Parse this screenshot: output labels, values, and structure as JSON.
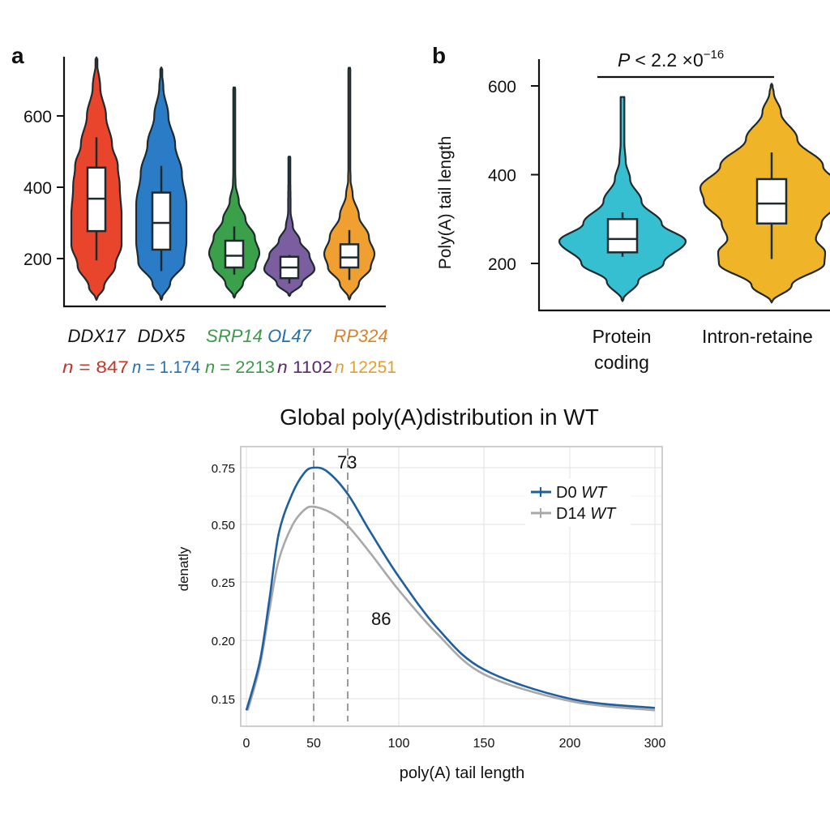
{
  "chart_data": [
    {
      "type": "violin",
      "panel_label": "a",
      "ylim": [
        66,
        780
      ],
      "yticks": [
        200,
        400,
        600
      ],
      "categories": [
        "DDX17",
        "DDX5",
        "SRP14",
        "OL47",
        "RP324"
      ],
      "category_colors": [
        "#111111",
        "#111111",
        "#3a9a48",
        "#1f6fb0",
        "#d9822b"
      ],
      "n_labels": [
        "n = 847",
        "n = 1.174",
        "n = 2213",
        "n 1102",
        "n 12251"
      ],
      "n_label_colors": [
        "#c0392b",
        "#1f6fb0",
        "#3a9a48",
        "#5a2a6a",
        "#e0a030"
      ],
      "series": [
        {
          "fill": "#e8452c",
          "box": {
            "whisker_low": 195,
            "q1": 277,
            "median": 368,
            "q3": 455,
            "whisker_high": 540
          },
          "density": [
            [
              84,
              0
            ],
            [
              120,
              0.3
            ],
            [
              180,
              0.75
            ],
            [
              240,
              1
            ],
            [
              320,
              1
            ],
            [
              400,
              0.93
            ],
            [
              460,
              0.85
            ],
            [
              520,
              0.62
            ],
            [
              600,
              0.38
            ],
            [
              680,
              0.15
            ],
            [
              764,
              0
            ]
          ]
        },
        {
          "fill": "#2a7cc7",
          "box": {
            "whisker_low": 165,
            "q1": 225,
            "median": 300,
            "q3": 385,
            "whisker_high": 460
          },
          "density": [
            [
              84,
              0
            ],
            [
              130,
              0.35
            ],
            [
              190,
              0.92
            ],
            [
              250,
              1
            ],
            [
              350,
              1
            ],
            [
              440,
              0.82
            ],
            [
              520,
              0.55
            ],
            [
              600,
              0.28
            ],
            [
              680,
              0.08
            ],
            [
              736,
              0
            ]
          ]
        },
        {
          "fill": "#3aa04a",
          "box": {
            "whisker_low": 155,
            "q1": 175,
            "median": 208,
            "q3": 250,
            "whisker_high": 290
          },
          "density": [
            [
              90,
              0
            ],
            [
              130,
              0.35
            ],
            [
              180,
              0.85
            ],
            [
              215,
              1
            ],
            [
              260,
              0.82
            ],
            [
              310,
              0.45
            ],
            [
              360,
              0.18
            ],
            [
              410,
              0.05
            ],
            [
              460,
              0.03
            ],
            [
              680,
              0.03
            ]
          ]
        },
        {
          "fill": "#7a5ea0",
          "box": {
            "whisker_low": 130,
            "q1": 145,
            "median": 175,
            "q3": 205,
            "whisker_high": 210
          },
          "density": [
            [
              95,
              0
            ],
            [
              130,
              0.5
            ],
            [
              170,
              1
            ],
            [
              210,
              0.8
            ],
            [
              250,
              0.42
            ],
            [
              290,
              0.14
            ],
            [
              330,
              0.05
            ],
            [
              486,
              0.03
            ]
          ]
        },
        {
          "fill": "#f0a030",
          "box": {
            "whisker_low": 140,
            "q1": 175,
            "median": 203,
            "q3": 240,
            "whisker_high": 280
          },
          "density": [
            [
              85,
              0
            ],
            [
              130,
              0.38
            ],
            [
              175,
              0.85
            ],
            [
              213,
              1
            ],
            [
              260,
              0.78
            ],
            [
              320,
              0.38
            ],
            [
              380,
              0.13
            ],
            [
              420,
              0.05
            ],
            [
              470,
              0.03
            ],
            [
              735,
              0.03
            ]
          ]
        }
      ]
    },
    {
      "type": "violin",
      "panel_label": "b",
      "ylabel": "Poly(A) tail length",
      "ylim": [
        95,
        690
      ],
      "yticks": [
        200,
        400,
        600
      ],
      "categories": [
        "Protein coding",
        "Intron-retained"
      ],
      "category_lines": [
        [
          "Protein",
          "coding"
        ],
        [
          "Intron-retaine"
        ]
      ],
      "significance": {
        "p_symbol": "P",
        "text": "< 2.2 ×0",
        "exponent": "−16"
      },
      "series": [
        {
          "fill": "#35bfd0",
          "box": {
            "whisker_low": 215,
            "q1": 225,
            "median": 255,
            "q3": 300,
            "whisker_high": 315
          },
          "density": [
            [
              115,
              0
            ],
            [
              160,
              0.25
            ],
            [
              200,
              0.65
            ],
            [
              250,
              1
            ],
            [
              290,
              0.62
            ],
            [
              340,
              0.3
            ],
            [
              390,
              0.12
            ],
            [
              430,
              0.05
            ],
            [
              470,
              0.03
            ],
            [
              575,
              0.03
            ]
          ]
        },
        {
          "fill": "#f0b428",
          "box": {
            "whisker_low": 210,
            "q1": 290,
            "median": 335,
            "q3": 390,
            "whisker_high": 450
          },
          "density": [
            [
              112,
              0
            ],
            [
              150,
              0.28
            ],
            [
              200,
              0.74
            ],
            [
              225,
              0.75
            ],
            [
              255,
              0.62
            ],
            [
              290,
              0.7
            ],
            [
              340,
              0.95
            ],
            [
              370,
              1
            ],
            [
              420,
              0.72
            ],
            [
              480,
              0.36
            ],
            [
              540,
              0.13
            ],
            [
              585,
              0.03
            ],
            [
              605,
              0
            ]
          ]
        }
      ]
    },
    {
      "type": "line",
      "title": "Global poly(A)distribution in WT",
      "xlabel": "poly(A) tail length",
      "ylabel": "denatly",
      "xticks": [
        0,
        50,
        100,
        150,
        200,
        300
      ],
      "yticks": [
        0.75,
        0.5,
        0.25,
        0.2,
        0.15
      ],
      "ytick_labels": [
        "0.75",
        "0.50",
        "0.25",
        "0.20",
        "0.15"
      ],
      "grid": true,
      "legend_position": "top-right",
      "vlines": [
        50,
        70
      ],
      "annotations": [
        {
          "text": "73"
        },
        {
          "text": "86"
        }
      ],
      "series": [
        {
          "name": "D0 WT",
          "name_parts": [
            "D0",
            "WT"
          ],
          "color": "#1f5f9e",
          "x": [
            0,
            10,
            17,
            24,
            34,
            43,
            50,
            58,
            70,
            83,
            100,
            123,
            150,
            200,
            300
          ],
          "y": [
            0.14,
            0.182,
            0.234,
            0.459,
            0.634,
            0.727,
            0.75,
            0.733,
            0.634,
            0.471,
            0.273,
            0.21,
            0.175,
            0.15,
            0.142
          ]
        },
        {
          "name": "D14 WT",
          "name_parts": [
            "D14",
            "WT"
          ],
          "color": "#a8a8a8",
          "x": [
            1,
            10,
            17,
            24,
            34,
            43,
            50,
            60,
            70,
            83,
            100,
            123,
            150,
            200,
            300
          ],
          "y": [
            0.14,
            0.178,
            0.225,
            0.343,
            0.494,
            0.564,
            0.578,
            0.552,
            0.494,
            0.378,
            0.243,
            0.205,
            0.171,
            0.148,
            0.14
          ]
        }
      ]
    }
  ]
}
